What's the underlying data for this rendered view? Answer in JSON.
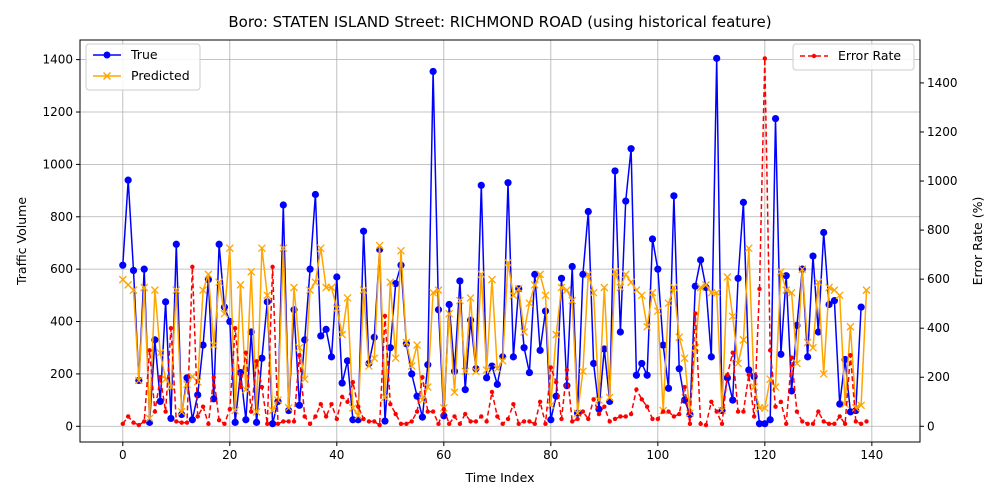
{
  "chart_data": {
    "type": "line",
    "title": "Boro: STATEN ISLAND Street: RICHMOND ROAD (using historical feature)",
    "xlabel": "Time Index",
    "ylabel": "Traffic Volume",
    "ylabel_right": "Error Rate (%)",
    "xlim": [
      -8,
      149
    ],
    "ylim": [
      -60,
      1475
    ],
    "ylim_right": [
      -64,
      1575
    ],
    "x_ticks": [
      0,
      20,
      40,
      60,
      80,
      100,
      120,
      140
    ],
    "y_ticks": [
      0,
      200,
      400,
      600,
      800,
      1000,
      1200,
      1400
    ],
    "y_ticks_right": [
      0,
      200,
      400,
      600,
      800,
      1000,
      1200,
      1400
    ],
    "grid": true,
    "legend_left": "upper-left",
    "legend_right": "upper-right",
    "series": [
      {
        "name": "True",
        "color": "#0000ff",
        "marker": "circle",
        "axis": "left",
        "values": [
          615,
          940,
          595,
          175,
          600,
          15,
          330,
          95,
          475,
          30,
          695,
          45,
          185,
          25,
          120,
          310,
          560,
          105,
          695,
          455,
          400,
          15,
          205,
          25,
          360,
          15,
          260,
          475,
          10,
          95,
          845,
          60,
          445,
          80,
          330,
          600,
          885,
          345,
          370,
          265,
          570,
          165,
          250,
          25,
          25,
          745,
          240,
          340,
          675,
          20,
          300,
          545,
          615,
          315,
          200,
          115,
          35,
          235,
          1355,
          445,
          40,
          465,
          210,
          555,
          140,
          405,
          220,
          920,
          185,
          230,
          160,
          265,
          930,
          265,
          525,
          300,
          205,
          580,
          290,
          440,
          25,
          115,
          565,
          155,
          610,
          50,
          580,
          820,
          240,
          65,
          295,
          95,
          975,
          360,
          860,
          1060,
          195,
          240,
          195,
          715,
          600,
          310,
          145,
          880,
          220,
          100,
          45,
          535,
          635,
          530,
          265,
          1405,
          60,
          185,
          100,
          565,
          855,
          215,
          190,
          10,
          10,
          25,
          1175,
          275,
          575,
          135,
          385,
          600,
          265,
          650,
          360,
          740,
          465,
          480,
          85,
          255,
          55,
          60,
          455
        ]
      },
      {
        "name": "Predicted",
        "color": "#ffa500",
        "marker": "x",
        "axis": "left",
        "values": [
          560,
          540,
          520,
          175,
          530,
          30,
          520,
          280,
          180,
          150,
          520,
          55,
          160,
          190,
          170,
          520,
          580,
          310,
          550,
          430,
          680,
          60,
          540,
          140,
          590,
          55,
          680,
          500,
          60,
          100,
          680,
          70,
          530,
          300,
          180,
          520,
          550,
          680,
          530,
          530,
          450,
          350,
          490,
          70,
          40,
          520,
          230,
          260,
          690,
          110,
          550,
          260,
          670,
          320,
          230,
          310,
          100,
          150,
          510,
          520,
          70,
          430,
          130,
          480,
          210,
          490,
          210,
          580,
          215,
          560,
          220,
          250,
          625,
          500,
          525,
          360,
          470,
          540,
          580,
          500,
          80,
          350,
          530,
          520,
          480,
          50,
          210,
          580,
          510,
          100,
          530,
          110,
          590,
          530,
          580,
          550,
          520,
          500,
          380,
          510,
          440,
          60,
          470,
          530,
          340,
          260,
          50,
          300,
          530,
          540,
          510,
          510,
          60,
          570,
          420,
          240,
          330,
          680,
          150,
          70,
          70,
          180,
          150,
          590,
          520,
          510,
          240,
          600,
          320,
          300,
          550,
          200,
          530,
          520,
          500,
          85,
          380,
          70,
          80,
          520
        ]
      },
      {
        "name": "Error Rate",
        "color": "#ff0000",
        "marker": "dot",
        "axis": "right",
        "values": [
          10,
          40,
          15,
          5,
          20,
          310,
          60,
          200,
          60,
          400,
          20,
          15,
          15,
          650,
          40,
          80,
          10,
          200,
          25,
          10,
          70,
          400,
          160,
          300,
          60,
          265,
          160,
          10,
          650,
          10,
          20,
          20,
          20,
          290,
          40,
          10,
          40,
          90,
          40,
          90,
          30,
          120,
          100,
          180,
          80,
          30,
          20,
          20,
          5,
          450,
          90,
          50,
          10,
          10,
          20,
          60,
          200,
          60,
          60,
          10,
          70,
          10,
          40,
          10,
          50,
          20,
          20,
          40,
          20,
          140,
          40,
          10,
          30,
          90,
          10,
          20,
          20,
          10,
          100,
          10,
          240,
          180,
          30,
          230,
          20,
          30,
          60,
          30,
          110,
          50,
          80,
          20,
          30,
          40,
          40,
          50,
          150,
          110,
          80,
          30,
          30,
          60,
          60,
          40,
          50,
          160,
          10,
          460,
          10,
          5,
          100,
          60,
          10,
          210,
          300,
          60,
          60,
          210,
          40,
          560,
          1500,
          310,
          80,
          100,
          10,
          280,
          60,
          20,
          10,
          10,
          60,
          20,
          10,
          10,
          40,
          10,
          290,
          20,
          10,
          20
        ]
      }
    ]
  }
}
